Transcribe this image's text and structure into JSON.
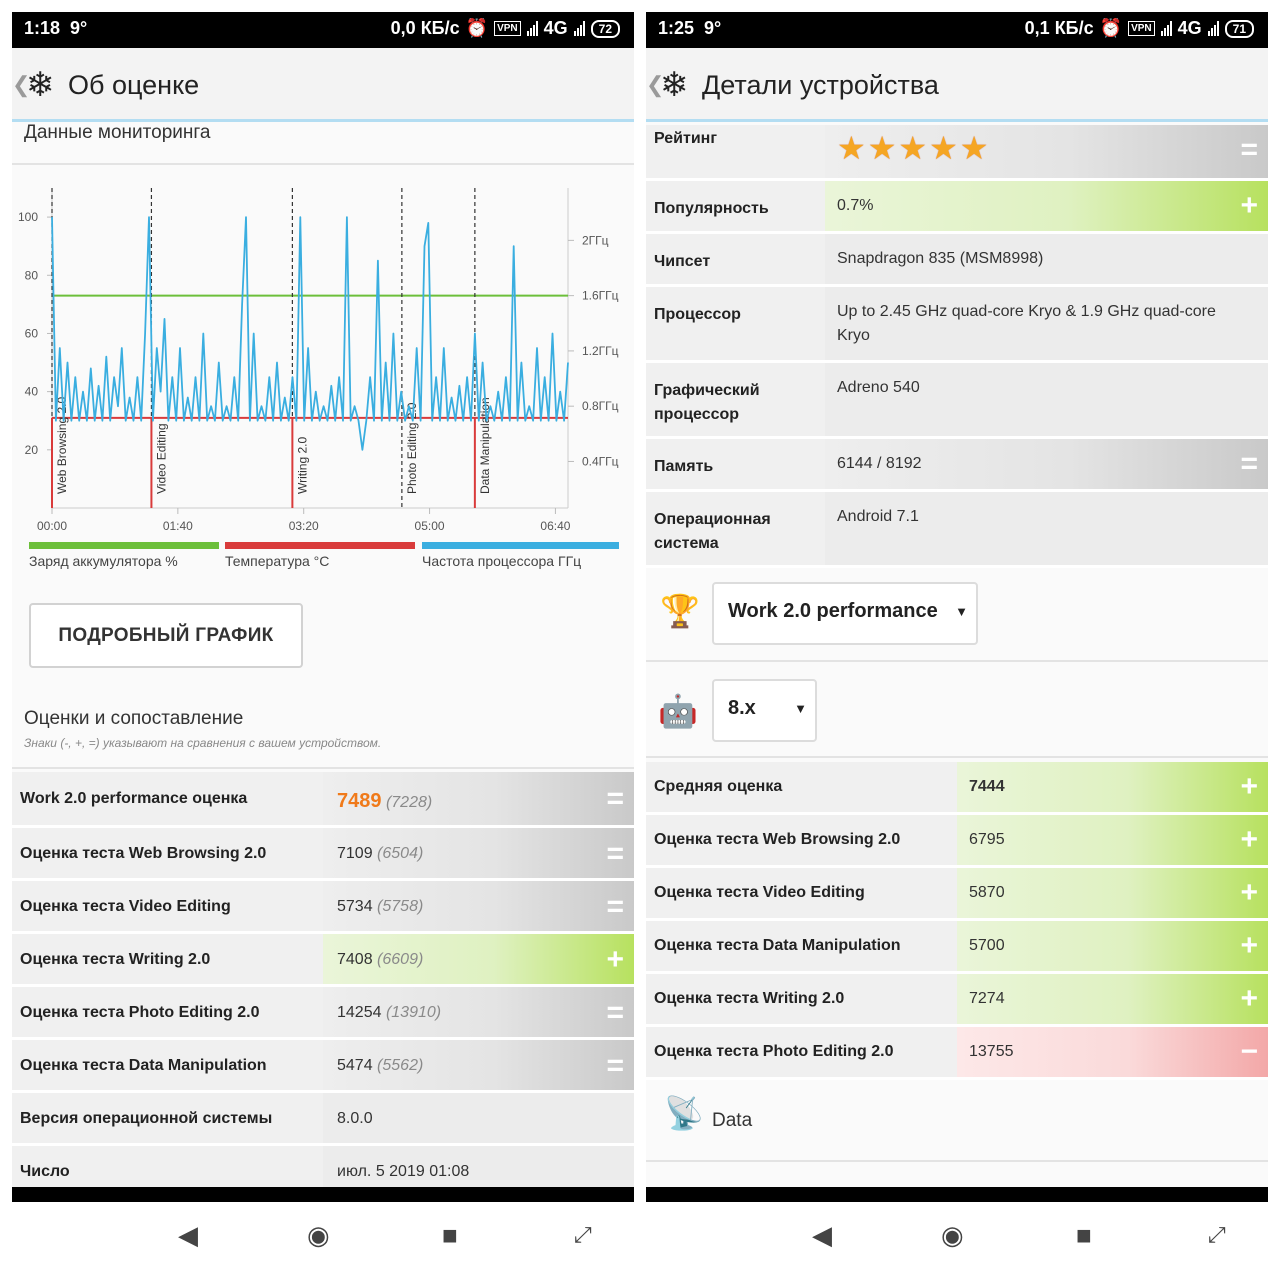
{
  "left": {
    "status": {
      "time": "1:18",
      "temp": "9°",
      "speed": "0,0 КБ/с",
      "vpn": "VPN",
      "net": "4G",
      "battery": "72"
    },
    "title": "Об оценке",
    "monitoring_title": "Данные мониторинга",
    "chart_data": {
      "type": "line",
      "x_ticks": [
        "00:00",
        "01:40",
        "03:20",
        "05:00",
        "06:40"
      ],
      "y_left_ticks": [
        "100",
        "80",
        "60",
        "40",
        "20"
      ],
      "y_right_ticks": [
        "2ГГц",
        "1.6ГГц",
        "1.2ГГц",
        "0.8ГГц",
        "0.4ГГц"
      ],
      "ylim": [
        0,
        110
      ],
      "markers": [
        {
          "label": "Web Browsing 2.0",
          "t": 0
        },
        {
          "label": "Video Editing",
          "t": 79
        },
        {
          "label": "Writing 2.0",
          "t": 191
        },
        {
          "label": "Photo Editing 2.0",
          "t": 278
        },
        {
          "label": "Data Manipulation",
          "t": 336
        }
      ],
      "series": [
        {
          "name": "Заряд аккумулятора %",
          "color": "#6cbf3a",
          "values": [
            73,
            73
          ]
        },
        {
          "name": "Температура °C",
          "color": "#d93b3b",
          "values": [
            31,
            31
          ]
        },
        {
          "name": "Частота процессора ГГц",
          "color": "#3aaee0",
          "values": [
            100,
            30,
            55,
            30,
            50,
            30,
            45,
            30,
            40,
            30,
            48,
            30,
            42,
            30,
            52,
            30,
            45,
            35,
            55,
            30,
            38,
            30,
            45,
            30,
            60,
            100,
            30,
            55,
            40,
            65,
            30,
            45,
            30,
            55,
            30,
            38,
            30,
            45,
            30,
            60,
            30,
            35,
            30,
            50,
            30,
            35,
            30,
            45,
            30,
            70,
            100,
            30,
            60,
            30,
            35,
            30,
            45,
            30,
            50,
            30,
            38,
            30,
            45,
            30,
            100,
            30,
            55,
            30,
            40,
            30,
            35,
            30,
            42,
            30,
            45,
            30,
            100,
            30,
            35,
            30,
            20,
            30,
            45,
            30,
            85,
            30,
            50,
            30,
            60,
            30,
            40,
            30,
            35,
            30,
            55,
            30,
            90,
            98,
            30,
            45,
            30,
            55,
            30,
            38,
            30,
            42,
            30,
            45,
            30,
            60,
            30,
            50,
            30,
            35,
            30,
            40,
            30,
            45,
            30,
            90,
            30,
            50,
            30,
            35,
            30,
            55,
            30,
            45,
            30,
            60,
            30,
            40,
            30,
            50
          ]
        }
      ]
    },
    "legend": [
      "Заряд аккумулятора %",
      "Температура °C",
      "Частота процессора ГГц"
    ],
    "button": "ПОДРОБНЫЙ ГРАФИК",
    "scores_title": "Оценки и сопоставление",
    "scores_note": "Знаки (-, +, =) указывают на сравнения с вашем устройством.",
    "rows": [
      {
        "label": "Work 2.0 performance оценка",
        "value": "7489",
        "ref": "(7228)",
        "sign": "="
      },
      {
        "label": "Оценка теста Web Browsing 2.0",
        "value": "7109",
        "ref": "(6504)",
        "sign": "="
      },
      {
        "label": "Оценка теста Video Editing",
        "value": "5734",
        "ref": "(5758)",
        "sign": "="
      },
      {
        "label": "Оценка теста Writing 2.0",
        "value": "7408",
        "ref": "(6609)",
        "sign": "+"
      },
      {
        "label": "Оценка теста Photo Editing 2.0",
        "value": "14254",
        "ref": "(13910)",
        "sign": "="
      },
      {
        "label": "Оценка теста Data Manipulation",
        "value": "5474",
        "ref": "(5562)",
        "sign": "="
      },
      {
        "label": "Версия операционной системы",
        "value": "8.0.0",
        "ref": "",
        "sign": ""
      },
      {
        "label": "Число",
        "value": "июл. 5 2019 01:08",
        "ref": "",
        "sign": ""
      }
    ]
  },
  "right": {
    "status": {
      "time": "1:25",
      "temp": "9°",
      "speed": "0,1 КБ/с",
      "vpn": "VPN",
      "net": "4G",
      "battery": "71"
    },
    "title": "Детали устройства",
    "details": [
      {
        "label": "Рейтинг",
        "value": "",
        "stars": 5,
        "sign": "="
      },
      {
        "label": "Популярность",
        "value": "0.7%",
        "sign": "+"
      },
      {
        "label": "Чипсет",
        "value": "Snapdragon 835 (MSM8998)",
        "sign": ""
      },
      {
        "label": "Процессор",
        "value": "Up to 2.45 GHz quad-core Kryo & 1.9 GHz quad-core Kryo",
        "sign": ""
      },
      {
        "label": "Графический процессор",
        "value": "Adreno 540",
        "sign": ""
      },
      {
        "label": "Память",
        "value": "6144 / 8192",
        "sign": "="
      },
      {
        "label": "Операционная система",
        "value": "Android 7.1",
        "sign": ""
      }
    ],
    "test_select": "Work 2.0 performance",
    "os_select": "8.x",
    "scores": [
      {
        "label": "Средняя оценка",
        "value": "7444",
        "sign": "+"
      },
      {
        "label": "Оценка теста Web Browsing 2.0",
        "value": "6795",
        "sign": "+"
      },
      {
        "label": "Оценка теста Video Editing",
        "value": "5870",
        "sign": "+"
      },
      {
        "label": "Оценка теста Data Manipulation",
        "value": "5700",
        "sign": "+"
      },
      {
        "label": "Оценка теста Writing 2.0",
        "value": "7274",
        "sign": "+"
      },
      {
        "label": "Оценка теста Photo Editing 2.0",
        "value": "13755",
        "sign": "−"
      }
    ],
    "data_section": "Data"
  }
}
